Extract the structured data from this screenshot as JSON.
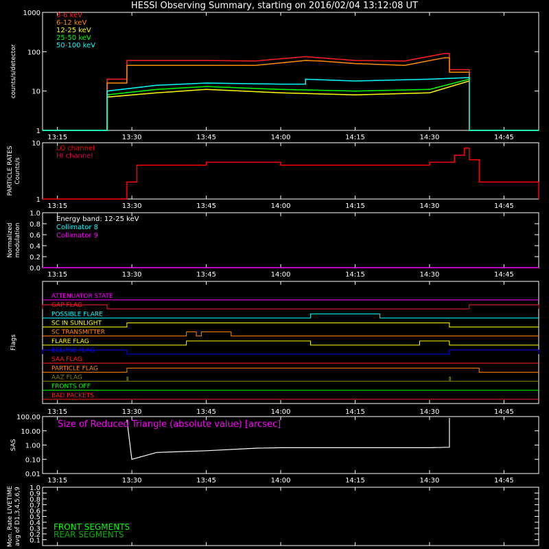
{
  "title": "HESSI Observing Summary, starting on 2016/02/04 13:12:08 UT",
  "time_ticks": [
    "13:15",
    "13:30",
    "13:45",
    "14:00",
    "14:15",
    "14:30",
    "14:45"
  ],
  "colors": {
    "band_3_6": "#ff2020",
    "band_6_12": "#ff8c00",
    "band_12_25": "#ffff00",
    "band_25_50": "#00ff00",
    "band_50_100": "#00ffff",
    "lo_channel": "#ff0000",
    "hi_channel": "#e00050",
    "collimator_8": "#00ffff",
    "collimator_9": "#ff00ff",
    "triangle_text": "#ff00ff",
    "front_segments": "#00ff00",
    "rear_segments": "#00b000"
  },
  "chart_data": [
    {
      "type": "line",
      "panel": "count-rates",
      "ylabel": "counts/s/detector",
      "yscale": "log",
      "ylim": [
        1,
        1000
      ],
      "yticks": [
        "1",
        "10",
        "100",
        "1000"
      ],
      "xlim": [
        "13:12",
        "14:52"
      ],
      "series": [
        {
          "name": "3-6 keV",
          "color": "#ff2020",
          "x": [
            "13:12",
            "13:25",
            "13:25",
            "13:28",
            "13:29",
            "13:29",
            "13:45",
            "13:55",
            "14:05",
            "14:08",
            "14:15",
            "14:25",
            "14:33",
            "14:34",
            "14:34",
            "14:38",
            "14:38",
            "14:52"
          ],
          "y": [
            1,
            1,
            20,
            20,
            20,
            60,
            60,
            58,
            75,
            70,
            60,
            58,
            90,
            90,
            35,
            35,
            1,
            1
          ]
        },
        {
          "name": "6-12 keV",
          "color": "#ff8c00",
          "x": [
            "13:12",
            "13:25",
            "13:25",
            "13:28",
            "13:29",
            "13:29",
            "13:45",
            "13:55",
            "14:05",
            "14:08",
            "14:15",
            "14:25",
            "14:33",
            "14:34",
            "14:34",
            "14:38",
            "14:38",
            "14:52"
          ],
          "y": [
            1,
            1,
            16,
            16,
            16,
            45,
            45,
            45,
            60,
            58,
            50,
            45,
            70,
            70,
            30,
            30,
            1,
            1
          ]
        },
        {
          "name": "12-25 keV",
          "color": "#ffff00",
          "x": [
            "13:12",
            "13:25",
            "13:25",
            "13:35",
            "13:45",
            "14:00",
            "14:15",
            "14:30",
            "14:38",
            "14:38",
            "14:52"
          ],
          "y": [
            1,
            1,
            7,
            9,
            11,
            9,
            8,
            9,
            18,
            1,
            1
          ]
        },
        {
          "name": "25-50 keV",
          "color": "#00ff00",
          "x": [
            "13:12",
            "13:25",
            "13:25",
            "13:35",
            "13:45",
            "14:00",
            "14:15",
            "14:30",
            "14:38",
            "14:38",
            "14:52"
          ],
          "y": [
            1,
            1,
            8,
            11,
            13,
            11,
            10,
            11,
            20,
            1,
            1
          ]
        },
        {
          "name": "50-100 keV",
          "color": "#00ffff",
          "x": [
            "13:12",
            "13:25",
            "13:25",
            "13:35",
            "13:45",
            "14:00",
            "14:05",
            "14:05",
            "14:15",
            "14:30",
            "14:38",
            "14:38",
            "14:52"
          ],
          "y": [
            1,
            1,
            10,
            14,
            16,
            15,
            15,
            20,
            18,
            20,
            22,
            1,
            1
          ]
        }
      ]
    },
    {
      "type": "line",
      "panel": "particle-rates",
      "ylabel": "PARTICLE RATES\nCounts/s",
      "yscale": "log",
      "ylim": [
        1,
        10
      ],
      "yticks": [
        "1",
        "10"
      ],
      "xlim": [
        "13:12",
        "14:52"
      ],
      "series": [
        {
          "name": "LO channel",
          "color": "#ff0000",
          "x": [
            "13:12",
            "13:28",
            "13:29",
            "13:31",
            "13:45",
            "14:00",
            "14:15",
            "14:30",
            "14:35",
            "14:37",
            "14:38",
            "14:40",
            "14:52"
          ],
          "y": [
            1,
            1,
            2,
            4,
            4.5,
            4,
            4,
            4.5,
            6,
            8,
            5,
            2,
            1
          ]
        }
      ],
      "legend": [
        "LO channel",
        "HI channel"
      ]
    },
    {
      "type": "line",
      "panel": "modulation",
      "ylabel": "Normalized\nmodulation",
      "ylim": [
        0.0,
        1.0
      ],
      "yticks": [
        "0.0",
        "0.2",
        "0.4",
        "0.6",
        "0.8",
        "1.0"
      ],
      "xlim": [
        "13:12",
        "14:52"
      ],
      "annotation": "Energy band: 12-25 keV",
      "series": [
        {
          "name": "Collimator 8",
          "color": "#00ffff",
          "x": [],
          "y": []
        },
        {
          "name": "Collimator 9",
          "color": "#ff00ff",
          "x": [
            "13:12",
            "14:52"
          ],
          "y": [
            0.0,
            0.0
          ]
        }
      ]
    },
    {
      "type": "line",
      "panel": "flags",
      "ylabel": "Flags",
      "xlim": [
        "13:12",
        "14:52"
      ],
      "series": [
        {
          "name": "ATTENUATOR STATE",
          "color": "#ff00ff",
          "on": []
        },
        {
          "name": "GAP FLAG",
          "color": "#ff2020",
          "on": [
            [
              "13:12",
              "13:25"
            ],
            [
              "14:38",
              "14:52"
            ]
          ]
        },
        {
          "name": "POSSIBLE FLARE",
          "color": "#00ffff",
          "on": [
            [
              "14:06",
              "14:20"
            ]
          ]
        },
        {
          "name": "SC IN SUNLIGHT",
          "color": "#ffff00",
          "on": [
            [
              "13:29",
              "14:34"
            ]
          ]
        },
        {
          "name": "SC TRANSMITTER",
          "color": "#ff8c00",
          "on": [
            [
              "13:41",
              "13:43"
            ],
            [
              "13:44",
              "13:50"
            ]
          ]
        },
        {
          "name": "FLARE FLAG",
          "color": "#ffff00",
          "on": [
            [
              "13:41",
              "14:06"
            ],
            [
              "14:28",
              "14:34"
            ]
          ]
        },
        {
          "name": "ECLIPSE FLAG",
          "color": "#0000ff",
          "on": [
            [
              "13:12",
              "13:29"
            ],
            [
              "14:34",
              "14:52"
            ]
          ]
        },
        {
          "name": "SAA FLAG",
          "color": "#ff2020",
          "on": []
        },
        {
          "name": "PARTICLE FLAG",
          "color": "#ff8c00",
          "on": [
            [
              "13:29",
              "14:40"
            ]
          ]
        },
        {
          "name": "AAZ FLAG",
          "color": "#808000",
          "on": [
            [
              "13:29",
              "13:29"
            ],
            [
              "14:34",
              "14:34"
            ]
          ]
        },
        {
          "name": "FRONTS OFF",
          "color": "#00ff00",
          "on": []
        },
        {
          "name": "BAD PACKETS",
          "color": "#ff2020",
          "on": []
        }
      ]
    },
    {
      "type": "line",
      "panel": "sas",
      "ylabel": "SAS",
      "yscale": "log",
      "ylim": [
        0.01,
        100
      ],
      "yticks": [
        "0.01",
        "0.10",
        "1.00",
        "10.00",
        "100.00"
      ],
      "xlim": [
        "13:12",
        "14:52"
      ],
      "annotation": "Size of Reduced Triangle (absolute value) [arcsec]",
      "series": [
        {
          "name": "triangle-size",
          "color": "#ffffff",
          "x": [
            "13:29",
            "13:30",
            "13:35",
            "13:45",
            "13:55",
            "14:00",
            "14:15",
            "14:30",
            "14:34",
            "14:34"
          ],
          "y": [
            60,
            0.1,
            0.3,
            0.4,
            0.6,
            0.65,
            0.65,
            0.65,
            0.7,
            80
          ]
        }
      ]
    },
    {
      "type": "line",
      "panel": "livetime",
      "ylabel": "Mon. Rate LIVETIME\navg of D1,3,4,5,6,9",
      "ylim": [
        0.0,
        1.0
      ],
      "yticks": [
        "0.1",
        "0.2",
        "0.3",
        "0.4",
        "0.5",
        "0.6",
        "0.7",
        "0.8",
        "0.9",
        "1.0"
      ],
      "xlim": [
        "13:12",
        "14:52"
      ],
      "series": [
        {
          "name": "FRONT SEGMENTS",
          "color": "#00ff00",
          "x": [],
          "y": []
        },
        {
          "name": "REAR SEGMENTS",
          "color": "#00b000",
          "x": [],
          "y": []
        }
      ]
    }
  ]
}
